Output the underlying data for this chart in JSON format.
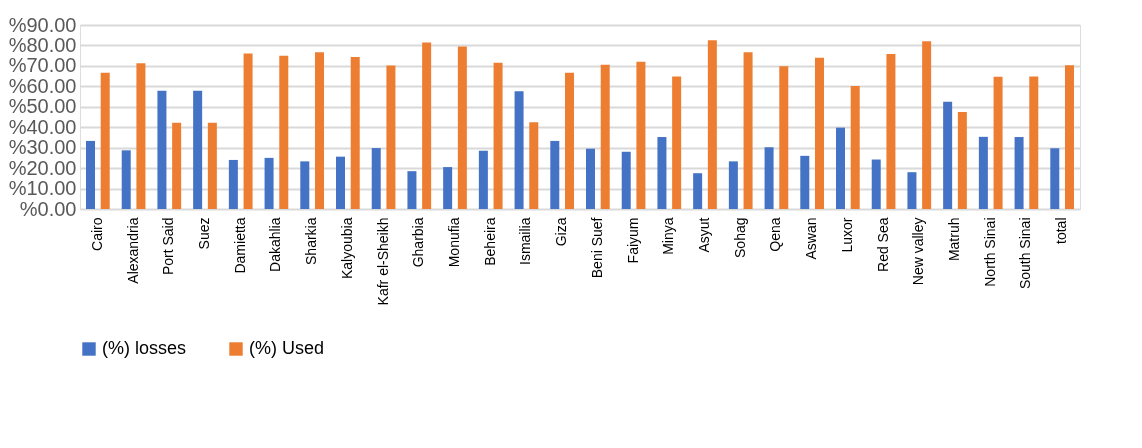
{
  "chart_data": {
    "type": "bar",
    "categories": [
      "Cairo",
      "Alexandria",
      "Port Said",
      "Suez",
      "Damietta",
      "Dakahlia",
      "Sharkia",
      "Kalyoubia",
      "Kafr el-Sheikh",
      "Gharbia",
      "Monufia",
      "Beheira",
      "Ismailia",
      "Giza",
      "Beni Suef",
      "Faiyum",
      "Minya",
      "Asyut",
      "Sohag",
      "Qena",
      "Aswan",
      "Luxor",
      "Red Sea",
      "New valley",
      "Matruh",
      "North Sinai",
      "South Sinai",
      "total"
    ],
    "series": [
      {
        "name": "(%) losses",
        "color": "#4472c4",
        "values": [
          33.3,
          28.7,
          57.8,
          57.8,
          24,
          25,
          23.3,
          25.6,
          29.8,
          18.5,
          20.5,
          28.5,
          57.6,
          33.3,
          29.5,
          28,
          35.2,
          17.5,
          23.3,
          30.2,
          26,
          39.8,
          24.2,
          18,
          52.5,
          35.3,
          35.2,
          29.7
        ]
      },
      {
        "name": "(%) Used",
        "color": "#ed7d31",
        "values": [
          66.7,
          71.3,
          42.2,
          42.2,
          76,
          75,
          76.7,
          74.4,
          70.2,
          81.5,
          79.5,
          71.5,
          42.4,
          66.7,
          70.5,
          72,
          64.8,
          82.5,
          76.7,
          69.8,
          74,
          60.2,
          75.8,
          82,
          47.5,
          64.7,
          64.8,
          70.3
        ]
      }
    ],
    "ylim": [
      0,
      90
    ],
    "yticks": [
      {
        "value": 0,
        "label": "%0.00"
      },
      {
        "value": 10,
        "label": "%10.00"
      },
      {
        "value": 20,
        "label": "%20.00"
      },
      {
        "value": 30,
        "label": "%30.00"
      },
      {
        "value": 40,
        "label": "%40.00"
      },
      {
        "value": 50,
        "label": "%50.00"
      },
      {
        "value": 60,
        "label": "%60.00"
      },
      {
        "value": 70,
        "label": "%70.00"
      },
      {
        "value": 80,
        "label": "%80.00"
      },
      {
        "value": 90,
        "label": "%90.00"
      }
    ],
    "grid": "y",
    "legend": "bottom"
  }
}
